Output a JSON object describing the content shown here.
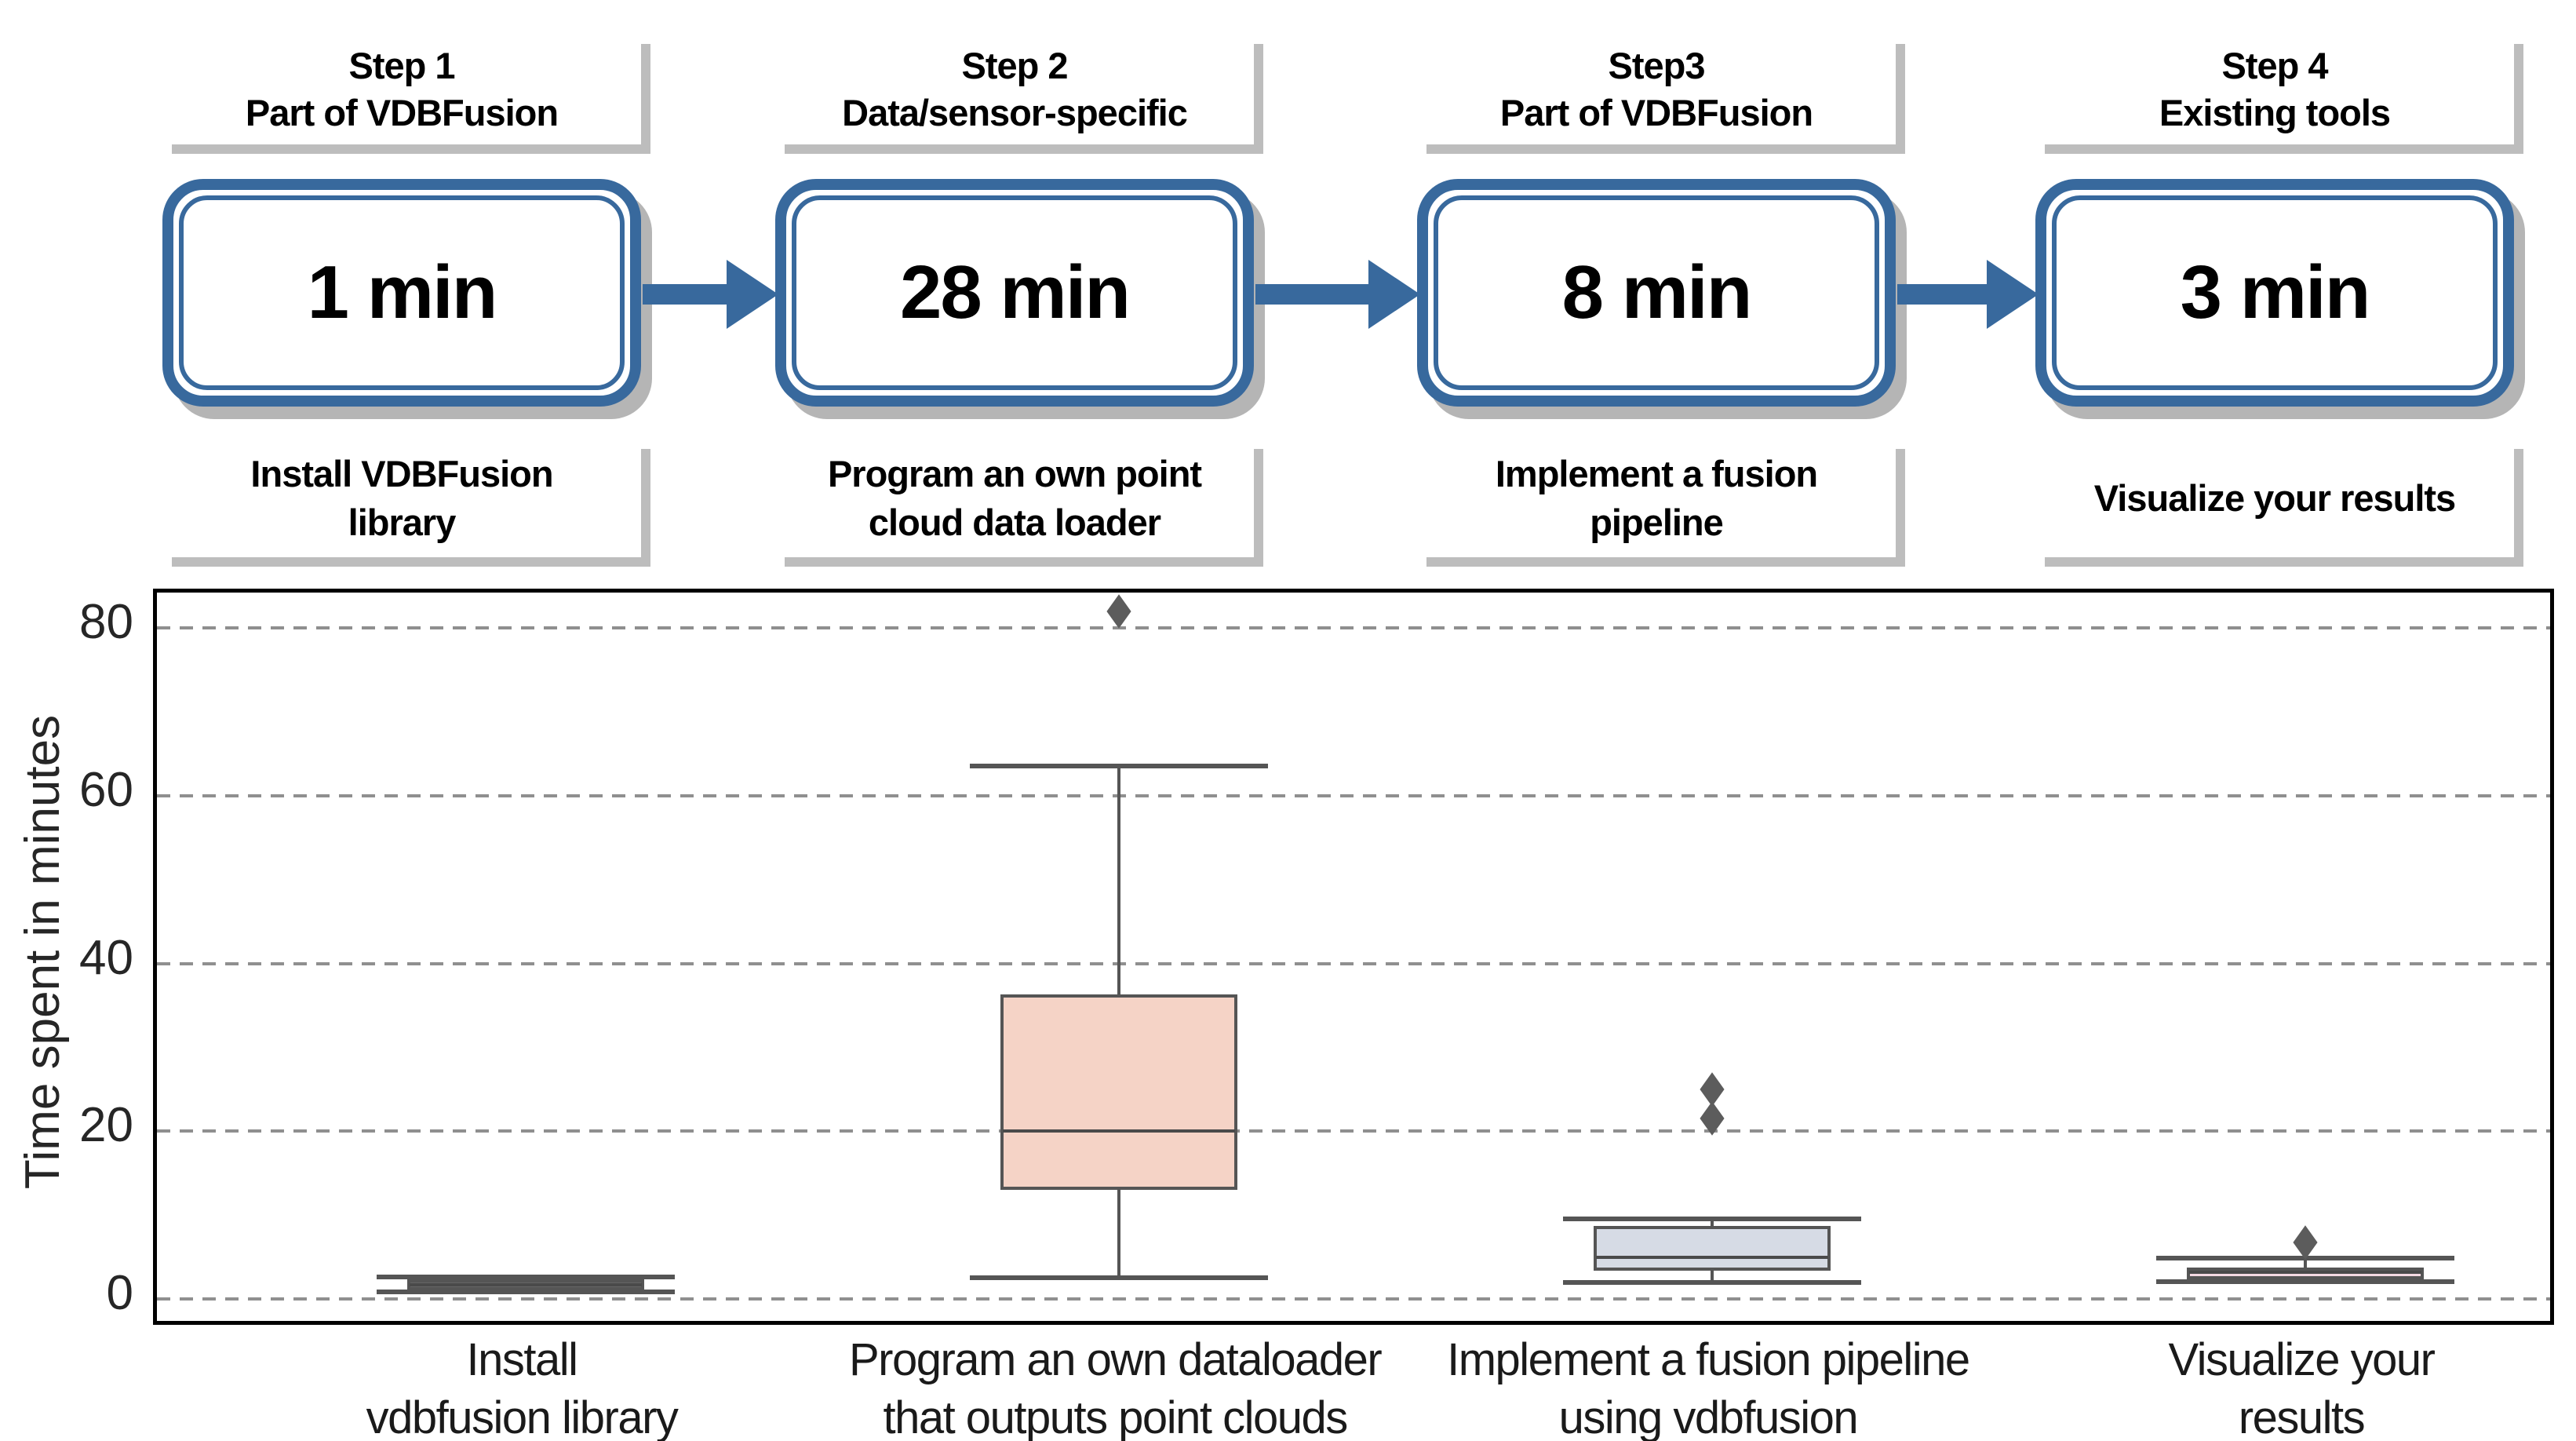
{
  "figure": {
    "description": "VDBFusion usage pipeline with time spent per step and user-study box plot"
  },
  "flowchart": {
    "steps": [
      {
        "step_label": "Step 1",
        "category": "Part of VDBFusion",
        "duration": "1 min",
        "task_lines": [
          "Install VDBFusion",
          "library"
        ]
      },
      {
        "step_label": "Step 2",
        "category": "Data/sensor-specific",
        "duration": "28 min",
        "task_lines": [
          "Program an own point",
          "cloud data loader"
        ]
      },
      {
        "step_label": "Step3",
        "category": "Part of VDBFusion",
        "duration": "8 min",
        "task_lines": [
          "Implement a fusion",
          "pipeline"
        ]
      },
      {
        "step_label": "Step 4",
        "category": "Existing tools",
        "duration": "3 min",
        "task_lines": [
          "Visualize your results"
        ]
      }
    ],
    "colors": {
      "box_blue": "#38699d",
      "shadow_gray": "#bdbdbd"
    }
  },
  "chart_data": {
    "type": "boxplot",
    "title": "",
    "xlabel": "",
    "ylabel": "Time spent in minutes",
    "yticks": [
      0,
      20,
      40,
      60,
      80
    ],
    "ylim": [
      -2.6,
      84.2
    ],
    "grid": "horizontal dashed",
    "legend": "none",
    "categories": [
      {
        "label_lines": [
          "Install",
          "vdbfusion library"
        ],
        "stats": {
          "whisker_low": 0.9,
          "q1": 1.0,
          "median": 1.7,
          "q3": 2.4,
          "whisker_high": 2.6
        },
        "outliers": [],
        "fill": "#666666"
      },
      {
        "label_lines": [
          "Program an own dataloader",
          "that outputs point clouds"
        ],
        "stats": {
          "whisker_low": 2.5,
          "q1": 13,
          "median": 20,
          "q3": 36.3,
          "whisker_high": 63.5
        },
        "outliers": [
          82
        ],
        "fill": "#f5d3c6"
      },
      {
        "label_lines": [
          "Implement a fusion pipeline",
          "using vdbfusion"
        ],
        "stats": {
          "whisker_low": 2.0,
          "q1": 3.4,
          "median": 5.0,
          "q3": 8.7,
          "whisker_high": 9.6
        },
        "outliers": [
          21.5,
          25
        ],
        "fill": "#d6dbe5"
      },
      {
        "label_lines": [
          "Visualize your",
          "results"
        ],
        "stats": {
          "whisker_low": 2.1,
          "q1": 2.4,
          "median": 3.2,
          "q3": 3.8,
          "whisker_high": 4.9
        },
        "outliers": [
          6.8
        ],
        "fill": "#f4d9e2"
      }
    ],
    "line_color": "#555555",
    "outlier_color": "#5c5c5c",
    "grid_color": "#8f8f8f"
  }
}
